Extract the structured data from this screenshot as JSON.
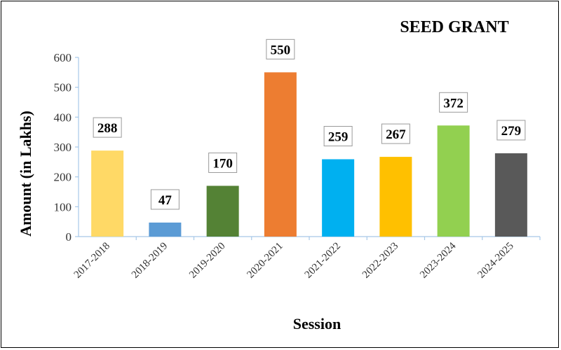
{
  "chart_data": {
    "type": "bar",
    "title": "SEED GRANT",
    "xlabel": "Session",
    "ylabel": "Amount (in Lakhs)",
    "ylim": [
      0,
      600
    ],
    "yticks": [
      0,
      100,
      200,
      300,
      400,
      500,
      600
    ],
    "grid": false,
    "legend": "none",
    "categories": [
      "2017-2018",
      "2018-2019",
      "2019-2020",
      "2020-2021",
      "2021-2022",
      "2022-2023",
      "2023-2024",
      "2024-2025"
    ],
    "values": [
      288,
      47,
      170,
      550,
      259,
      267,
      372,
      279
    ],
    "colors": [
      "#FFD966",
      "#5B9BD5",
      "#548235",
      "#ED7D31",
      "#00B0F0",
      "#FFC000",
      "#92D050",
      "#595959"
    ]
  }
}
